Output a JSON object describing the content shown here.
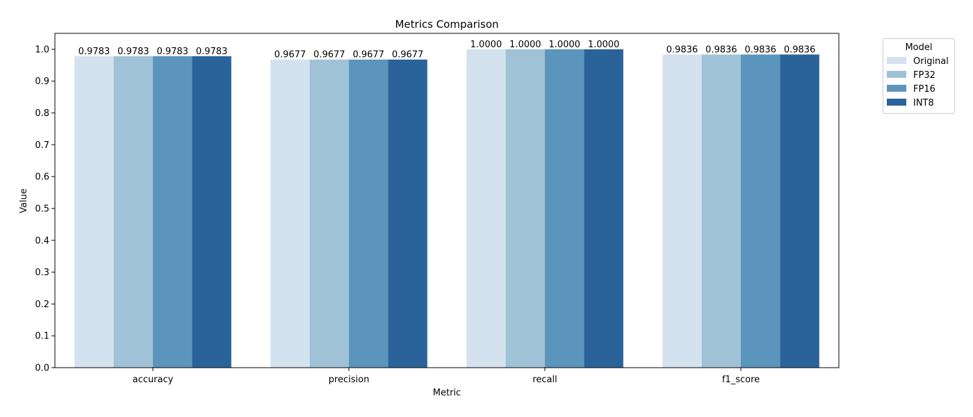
{
  "chart_data": {
    "type": "bar",
    "title": "Metrics Comparison",
    "xlabel": "Metric",
    "ylabel": "Value",
    "categories": [
      "accuracy",
      "precision",
      "recall",
      "f1_score"
    ],
    "series": [
      {
        "name": "Original",
        "color": "#d4e2f0",
        "values": [
          0.9783,
          0.9677,
          1.0,
          0.9836
        ],
        "labels": [
          "0.9783",
          "0.9677",
          "1.0000",
          "0.9836"
        ]
      },
      {
        "name": "FP32",
        "color": "#9fc2d7",
        "values": [
          0.9783,
          0.9677,
          1.0,
          0.9836
        ],
        "labels": [
          "0.9783",
          "0.9677",
          "1.0000",
          "0.9836"
        ]
      },
      {
        "name": "FP16",
        "color": "#5b95bc",
        "values": [
          0.9783,
          0.9677,
          1.0,
          0.9836
        ],
        "labels": [
          "0.9783",
          "0.9677",
          "1.0000",
          "0.9836"
        ]
      },
      {
        "name": "INT8",
        "color": "#2a6399",
        "values": [
          0.9783,
          0.9677,
          1.0,
          0.9836
        ],
        "labels": [
          "0.9783",
          "0.9677",
          "1.0000",
          "0.9836"
        ]
      }
    ],
    "ylim": [
      0,
      1.05
    ],
    "yticks": [
      "0.0",
      "0.1",
      "0.2",
      "0.3",
      "0.4",
      "0.5",
      "0.6",
      "0.7",
      "0.8",
      "0.9",
      "1.0"
    ],
    "grid": false,
    "legend": {
      "title": "Model",
      "placement": "outside-top-right"
    }
  }
}
